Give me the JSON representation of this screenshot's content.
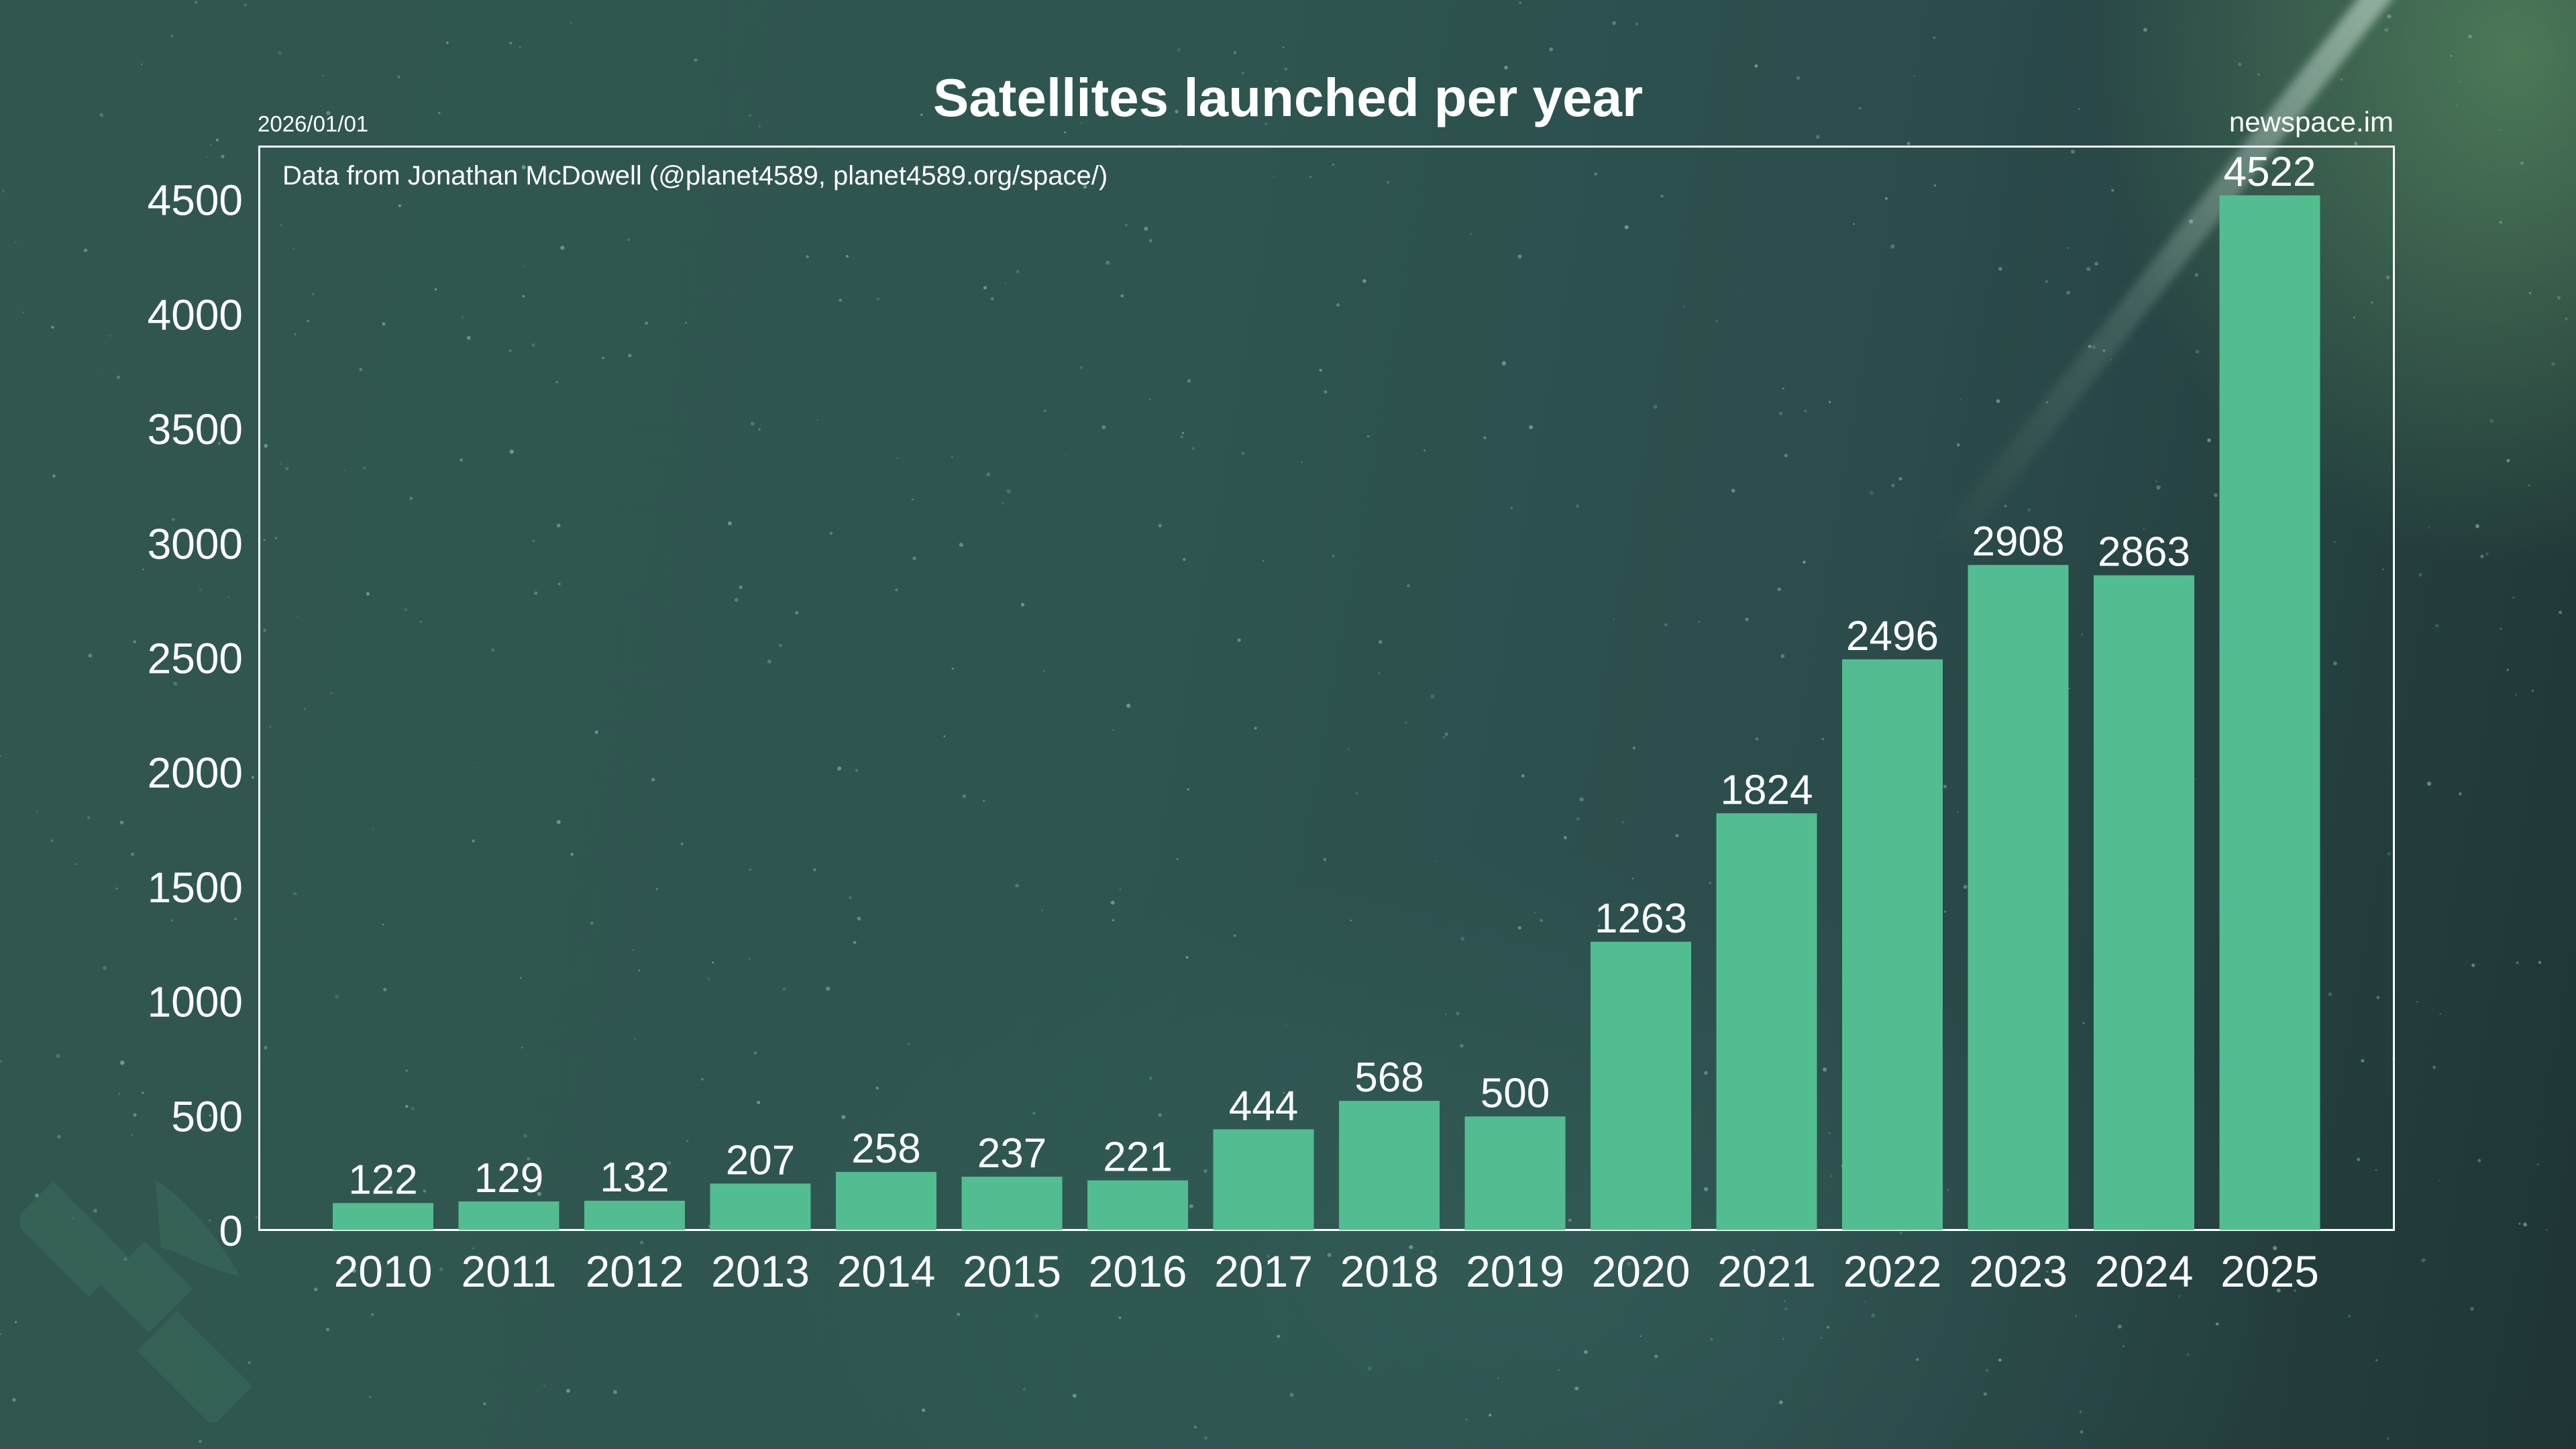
{
  "header": {
    "title": "Satellites launched per year",
    "date": "2026/01/01",
    "brand": "newspace.im",
    "source_note": "Data from Jonathan McDowell (@planet4589, planet4589.org/space/)"
  },
  "colors": {
    "bar": "#52bd90",
    "text": "#ffffff",
    "frame": "#ffffff",
    "background": "#2f5450"
  },
  "chart_data": {
    "type": "bar",
    "title": "Satellites launched per year",
    "xlabel": "",
    "ylabel": "",
    "categories": [
      "2010",
      "2011",
      "2012",
      "2013",
      "2014",
      "2015",
      "2016",
      "2017",
      "2018",
      "2019",
      "2020",
      "2021",
      "2022",
      "2023",
      "2024",
      "2025"
    ],
    "values": [
      122,
      129,
      132,
      207,
      258,
      237,
      221,
      444,
      568,
      500,
      1263,
      1824,
      2496,
      2908,
      2863,
      4522
    ],
    "data_labels": [
      "122",
      "129",
      "132",
      "207",
      "258",
      "237",
      "221",
      "444",
      "568",
      "500",
      "1263",
      "1824",
      "2496",
      "2908",
      "2863",
      "4522"
    ],
    "yticks": [
      0,
      500,
      1000,
      1500,
      2000,
      2500,
      3000,
      3500,
      4000,
      4500
    ],
    "ytick_labels": [
      "0",
      "500",
      "1000",
      "1500",
      "2000",
      "2500",
      "3000",
      "3500",
      "4000",
      "4500"
    ],
    "ylim": [
      0,
      4740
    ],
    "grid": false,
    "legend": "none",
    "annotation": "Data from Jonathan McDowell (@planet4589, planet4589.org/space/)"
  }
}
